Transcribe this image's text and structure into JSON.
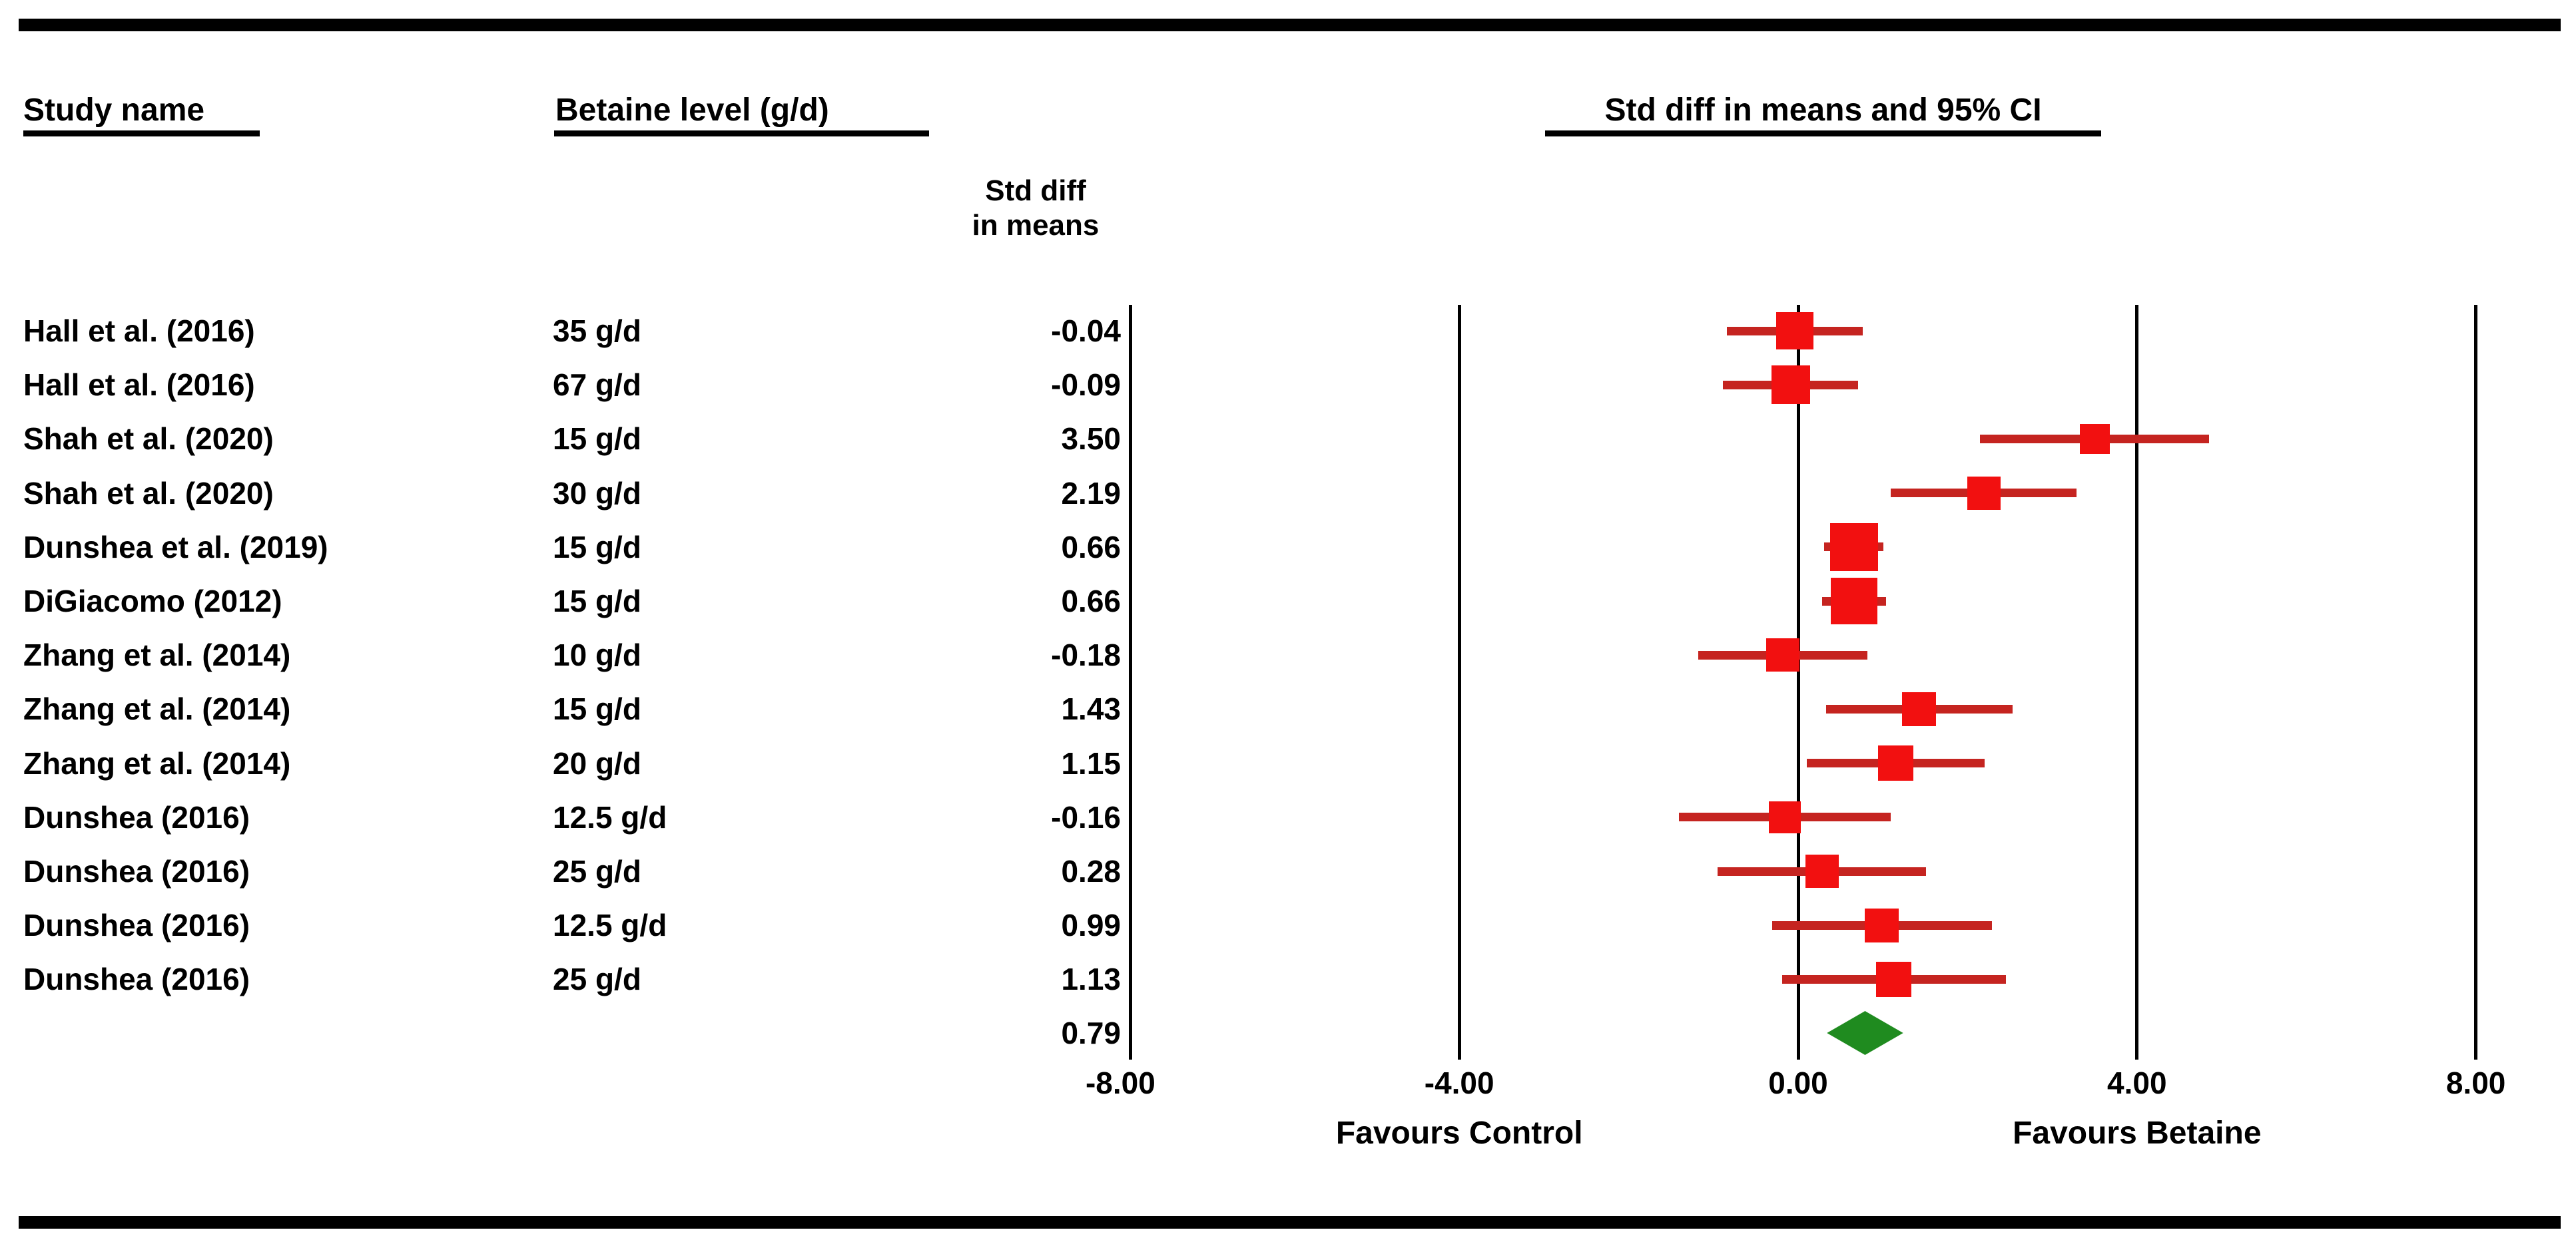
{
  "table": {
    "col_study_header": "Study name",
    "col_betaine_header": "Betaine level (g/d)",
    "col_effect_header": "Std diff in means and 95% CI",
    "effect_subheader_line1": "Std diff",
    "effect_subheader_line2": "in means"
  },
  "axis": {
    "favours_left": "Favours Control",
    "favours_right": "Favours Betaine"
  },
  "colors": {
    "square_red": "#f21010",
    "ci_line_red": "#c52420",
    "diamond_green": "#1f8b1f",
    "line_black": "#000000"
  },
  "chart_data": {
    "type": "forest",
    "effect_measure": "Std diff in means",
    "x_axis": {
      "min": -8,
      "max": 8,
      "ticks": [
        -8,
        -4,
        0,
        4,
        8
      ],
      "tick_labels": [
        "-8.00",
        "-4.00",
        "0.00",
        "4.00",
        "8.00"
      ],
      "gridline_values": [
        -4,
        0,
        4,
        8
      ],
      "grid": true,
      "left_region_label": "Favours Control",
      "right_region_label": "Favours Betaine"
    },
    "studies": [
      {
        "study": "Hall et al. (2016)",
        "betaine_level": "35 g/d",
        "estimate": -0.04,
        "estimate_label": "-0.04",
        "ci_low": -0.84,
        "ci_high": 0.76,
        "weight": 56
      },
      {
        "study": "Hall et al. (2016)",
        "betaine_level": "67 g/d",
        "estimate": -0.09,
        "estimate_label": "-0.09",
        "ci_low": -0.89,
        "ci_high": 0.71,
        "weight": 58
      },
      {
        "study": "Shah et al. (2020)",
        "betaine_level": "15 g/d",
        "estimate": 3.5,
        "estimate_label": "3.50",
        "ci_low": 2.15,
        "ci_high": 4.85,
        "weight": 45
      },
      {
        "study": "Shah et al. (2020)",
        "betaine_level": "30 g/d",
        "estimate": 2.19,
        "estimate_label": "2.19",
        "ci_low": 1.09,
        "ci_high": 3.29,
        "weight": 50
      },
      {
        "study": "Dunshea et al. (2019)",
        "betaine_level": "15 g/d",
        "estimate": 0.66,
        "estimate_label": "0.66",
        "ci_low": 0.31,
        "ci_high": 1.01,
        "weight": 72
      },
      {
        "study": "DiGiacomo (2012)",
        "betaine_level": "15 g/d",
        "estimate": 0.66,
        "estimate_label": "0.66",
        "ci_low": 0.28,
        "ci_high": 1.04,
        "weight": 70
      },
      {
        "study": "Zhang et al. (2014)",
        "betaine_level": "10 g/d",
        "estimate": -0.18,
        "estimate_label": "-0.18",
        "ci_low": -1.18,
        "ci_high": 0.82,
        "weight": 50
      },
      {
        "study": "Zhang et al. (2014)",
        "betaine_level": "15 g/d",
        "estimate": 1.43,
        "estimate_label": "1.43",
        "ci_low": 0.33,
        "ci_high": 2.53,
        "weight": 51
      },
      {
        "study": "Zhang et al. (2014)",
        "betaine_level": "20 g/d",
        "estimate": 1.15,
        "estimate_label": "1.15",
        "ci_low": 0.1,
        "ci_high": 2.2,
        "weight": 53
      },
      {
        "study": "Dunshea (2016)",
        "betaine_level": "12.5 g/d",
        "estimate": -0.16,
        "estimate_label": "-0.16",
        "ci_low": -1.41,
        "ci_high": 1.09,
        "weight": 48
      },
      {
        "study": "Dunshea (2016)",
        "betaine_level": "25 g/d",
        "estimate": 0.28,
        "estimate_label": "0.28",
        "ci_low": -0.95,
        "ci_high": 1.51,
        "weight": 50
      },
      {
        "study": "Dunshea (2016)",
        "betaine_level": "12.5 g/d",
        "estimate": 0.99,
        "estimate_label": "0.99",
        "ci_low": -0.31,
        "ci_high": 2.29,
        "weight": 51
      },
      {
        "study": "Dunshea (2016)",
        "betaine_level": "25 g/d",
        "estimate": 1.13,
        "estimate_label": "1.13",
        "ci_low": -0.19,
        "ci_high": 2.45,
        "weight": 53
      }
    ],
    "overall": {
      "estimate": 0.79,
      "estimate_label": "0.79",
      "ci_low": 0.34,
      "ci_high": 1.24
    }
  }
}
